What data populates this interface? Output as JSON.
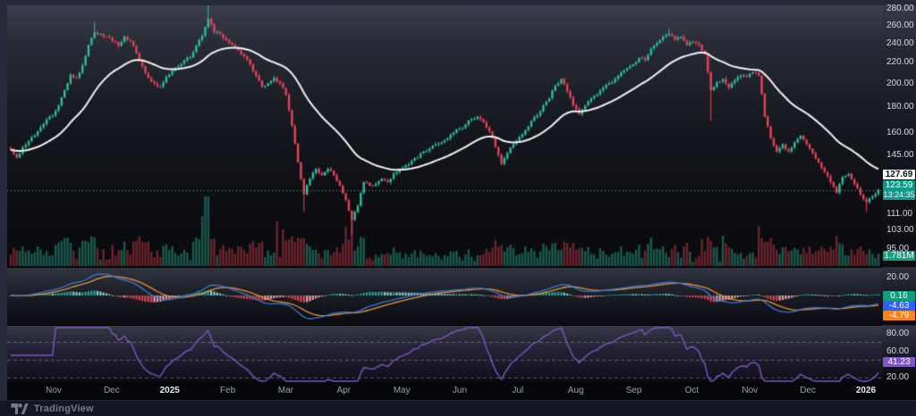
{
  "bottom_bar": {
    "brand": "TradingView"
  },
  "price_axis": {
    "ticks": [
      280,
      260,
      240,
      220,
      200,
      180,
      160,
      145,
      133,
      111,
      103,
      95
    ],
    "ma_label": "127.69",
    "last_price": "123.59",
    "countdown": "13:24:35",
    "volume_label": "1.781M"
  },
  "macd_axis": {
    "ticks": [
      "20.00",
      "-20.00"
    ],
    "hist_label": "0.16",
    "macd_label": "-4.63",
    "signal_label": "-4.79"
  },
  "rsi_axis": {
    "ticks": [
      "80.00",
      "60.00",
      "20.00"
    ],
    "value_label": "41.23"
  },
  "time_axis": {
    "labels": [
      {
        "t": "Nov"
      },
      {
        "t": "Dec"
      },
      {
        "t": "2025",
        "year": true
      },
      {
        "t": "Feb"
      },
      {
        "t": "Mar"
      },
      {
        "t": "Apr"
      },
      {
        "t": "May"
      },
      {
        "t": "Jun"
      },
      {
        "t": "Jul"
      },
      {
        "t": "Aug"
      },
      {
        "t": "Sep"
      },
      {
        "t": "Oct"
      },
      {
        "t": "Nov"
      },
      {
        "t": "Dec"
      },
      {
        "t": "2026",
        "year": true
      }
    ]
  },
  "colors": {
    "candle_up": "#2cbf9c",
    "candle_down": "#e84358",
    "ma_line": "#f2f3f5",
    "last_price_line": "rgba(100,190,170,0.9)",
    "volume_up": "rgba(44,170,140,0.5)",
    "volume_down": "rgba(205,62,74,0.5)",
    "macd_line": "#3a7bd5",
    "signal_line": "#e8963f",
    "hist_up": "#26a69a",
    "hist_up_light": "#8fd2c9",
    "hist_down": "#e0434f",
    "hist_down_light": "#eda0a8",
    "rsi_line": "#7e57c2",
    "rsi_band": "rgba(126,87,194,0.07)",
    "rsi_dash": "rgba(178,181,190,0.45)",
    "last_badge_bg": "#0e9888",
    "rsi_badge_bg": "#7e57c2"
  },
  "chart_data": {
    "type": "candlestick",
    "title": "",
    "x_axis_months": [
      "Nov",
      "Dec",
      "2025",
      "Feb",
      "Mar",
      "Apr",
      "May",
      "Jun",
      "Jul",
      "Aug",
      "Sep",
      "Oct",
      "Nov",
      "Dec",
      "2026"
    ],
    "price_scale": "log",
    "ylim": [
      95,
      283
    ],
    "last_close": 123.59,
    "close_anchors": [
      148,
      143,
      150,
      154,
      158,
      164,
      170,
      173,
      181,
      194,
      208,
      205,
      217,
      238,
      252,
      250,
      247,
      242,
      237,
      247,
      242,
      229,
      216,
      205,
      200,
      197,
      206,
      212,
      216,
      222,
      225,
      237,
      248,
      268,
      252,
      250,
      243,
      238,
      232,
      226,
      218,
      207,
      197,
      200,
      205,
      200,
      190,
      165,
      140,
      121,
      130,
      136,
      132,
      136,
      132,
      126,
      118,
      108,
      115,
      128,
      126,
      127,
      130,
      128,
      133,
      136,
      138,
      141,
      143,
      147,
      149,
      152,
      153,
      156,
      160,
      163,
      166,
      170,
      172,
      168,
      161,
      150,
      139,
      146,
      152,
      157,
      162,
      169,
      173,
      181,
      187,
      198,
      204,
      193,
      181,
      174,
      181,
      187,
      190,
      196,
      200,
      204,
      210,
      214,
      218,
      224,
      222,
      234,
      240,
      247,
      250,
      244,
      247,
      238,
      241,
      238,
      228,
      194,
      201,
      204,
      196,
      203,
      207,
      206,
      210,
      207,
      172,
      156,
      147,
      152,
      147,
      153,
      158,
      152,
      146,
      140,
      134,
      128,
      122,
      131,
      133,
      127,
      121,
      117,
      120,
      123.59
    ],
    "high_spikes": [
      [
        28,
        264
      ],
      [
        66,
        285
      ],
      [
        220,
        256
      ]
    ],
    "low_spikes": [
      [
        98,
        112
      ],
      [
        114,
        101
      ],
      [
        234,
        169
      ],
      [
        286,
        112
      ]
    ],
    "ma": {
      "type": "EMA",
      "length": 30,
      "last": 127.69
    },
    "volume": {
      "last_label": "1.781M",
      "spikes": [
        [
          64,
          0.5
        ],
        [
          65,
          1.0
        ],
        [
          66,
          0.6
        ],
        [
          89,
          0.42
        ],
        [
          91,
          0.3
        ],
        [
          112,
          0.38
        ],
        [
          114,
          0.45
        ],
        [
          238,
          0.3
        ],
        [
          250,
          0.38
        ],
        [
          276,
          0.25
        ]
      ]
    },
    "macd": {
      "fast": 12,
      "slow": 26,
      "signal": 9,
      "last_hist": 0.16,
      "last_macd": -4.63,
      "last_signal": -4.79,
      "axis_range": [
        -20,
        20
      ]
    },
    "rsi": {
      "length": 14,
      "last": 41.23,
      "levels": [
        70,
        50,
        30
      ],
      "axis_ticks": [
        80,
        60,
        20
      ]
    }
  }
}
